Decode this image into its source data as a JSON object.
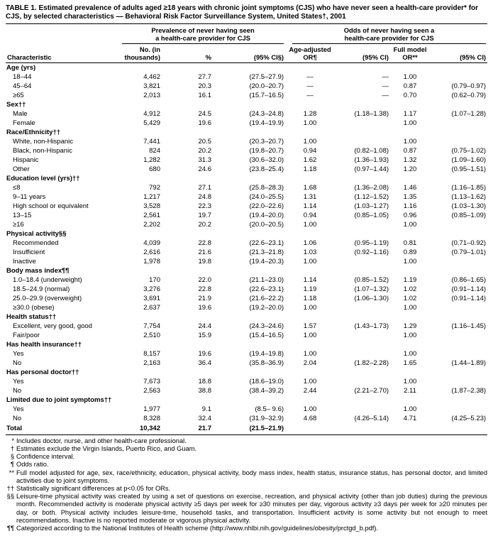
{
  "title": "TABLE 1. Estimated prevalence of adults aged ≥18 years with chronic joint symptoms (CJS) who have never seen a health-care provider* for CJS, by selected characteristics — Behavioral Risk Factor Surveillance System, United States†, 2001",
  "header": {
    "characteristic": "Characteristic",
    "prevalence_group": "Prevalence of never having seen\na health-care provider for CJS",
    "odds_group": "Odds of never having seen a\nhealth-care provider for CJS",
    "no_thousands": "No. (in\nthousands)",
    "percent": "%",
    "ci_prev": "(95% CI§)",
    "age_adjusted_or": "Age-adjusted\nOR¶",
    "ci_age": "(95% CI)",
    "full_model_or": "Full model\nOR**",
    "ci_full": "(95% CI)"
  },
  "table": {
    "rows": [
      {
        "type": "section",
        "label": "Age (yrs)"
      },
      {
        "type": "data",
        "label": "18–44",
        "no": "4,462",
        "pct": "27.7",
        "ci": "(27.5–27.9)",
        "or_age": "—",
        "ci_age": "—",
        "or_full": "1.00",
        "ci_full": ""
      },
      {
        "type": "data",
        "label": "45–64",
        "no": "3,821",
        "pct": "20.3",
        "ci": "(20.0–20.7)",
        "or_age": "—",
        "ci_age": "—",
        "or_full": "0.87",
        "ci_full": "(0.79–0.97)"
      },
      {
        "type": "data",
        "label": "≥65",
        "no": "2,013",
        "pct": "16.1",
        "ci": "(15.7–16.5)",
        "or_age": "—",
        "ci_age": "—",
        "or_full": "0.70",
        "ci_full": "(0.62–0.79)"
      },
      {
        "type": "section",
        "label": "Sex††"
      },
      {
        "type": "data",
        "label": "Male",
        "no": "4,912",
        "pct": "24.5",
        "ci": "(24.3–24.8)",
        "or_age": "1.28",
        "ci_age": "(1.18–1.38)",
        "or_full": "1.17",
        "ci_full": "(1.07–1.28)"
      },
      {
        "type": "data",
        "label": "Female",
        "no": "5,429",
        "pct": "19.6",
        "ci": "(19.4–19.9)",
        "or_age": "1.00",
        "ci_age": "",
        "or_full": "1.00",
        "ci_full": ""
      },
      {
        "type": "section",
        "label": "Race/Ethnicity††"
      },
      {
        "type": "data",
        "label": "White, non-Hispanic",
        "no": "7,441",
        "pct": "20.5",
        "ci": "(20.3–20.7)",
        "or_age": "1.00",
        "ci_age": "",
        "or_full": "1.00",
        "ci_full": ""
      },
      {
        "type": "data",
        "label": "Black, non-Hispanic",
        "no": "824",
        "pct": "20.2",
        "ci": "(19.8–20.7)",
        "or_age": "0.94",
        "ci_age": "(0.82–1.08)",
        "or_full": "0.87",
        "ci_full": "(0.75–1.02)"
      },
      {
        "type": "data",
        "label": "Hispanic",
        "no": "1,282",
        "pct": "31.3",
        "ci": "(30.6–32.0)",
        "or_age": "1.62",
        "ci_age": "(1.36–1.93)",
        "or_full": "1.32",
        "ci_full": "(1.09–1.60)"
      },
      {
        "type": "data",
        "label": "Other",
        "no": "680",
        "pct": "24.6",
        "ci": "(23.8–25.4)",
        "or_age": "1.18",
        "ci_age": "(0.97–1.44)",
        "or_full": "1.20",
        "ci_full": "(0.95–1.51)"
      },
      {
        "type": "section",
        "label": "Education level (yrs)††"
      },
      {
        "type": "data",
        "label": "≤8",
        "no": "792",
        "pct": "27.1",
        "ci": "(25.8–28.3)",
        "or_age": "1.68",
        "ci_age": "(1.36–2.08)",
        "or_full": "1.46",
        "ci_full": "(1.16–1.85)"
      },
      {
        "type": "data",
        "label": "9–11 years",
        "no": "1,217",
        "pct": "24.8",
        "ci": "(24.0–25.5)",
        "or_age": "1.31",
        "ci_age": "(1.12–1.52)",
        "or_full": "1.35",
        "ci_full": "(1.13–1.62)"
      },
      {
        "type": "data",
        "label": "High school or equivalent",
        "no": "3,528",
        "pct": "22.3",
        "ci": "(22.0–22.6)",
        "or_age": "1.14",
        "ci_age": "(1.03–1.27)",
        "or_full": "1.16",
        "ci_full": "(1.03–1.30)"
      },
      {
        "type": "data",
        "label": "13–15",
        "no": "2,561",
        "pct": "19.7",
        "ci": "(19.4–20.0)",
        "or_age": "0.94",
        "ci_age": "(0.85–1.05)",
        "or_full": "0.96",
        "ci_full": "(0.85–1.09)"
      },
      {
        "type": "data",
        "label": "≥16",
        "no": "2,202",
        "pct": "20.2",
        "ci": "(20.0–20.5)",
        "or_age": "1.00",
        "ci_age": "",
        "or_full": "1.00",
        "ci_full": ""
      },
      {
        "type": "section",
        "label": "Physical activity§§"
      },
      {
        "type": "data",
        "label": "Recommended",
        "no": "4,039",
        "pct": "22.8",
        "ci": "(22.6–23.1)",
        "or_age": "1.06",
        "ci_age": "(0.95–1.19)",
        "or_full": "0.81",
        "ci_full": "(0.71–0.92)"
      },
      {
        "type": "data",
        "label": "Insufficient",
        "no": "2,616",
        "pct": "21.6",
        "ci": "(21.3–21.8)",
        "or_age": "1.03",
        "ci_age": "(0.92–1.16)",
        "or_full": "0.89",
        "ci_full": "(0.79–1.01)"
      },
      {
        "type": "data",
        "label": "Inactive",
        "no": "1,978",
        "pct": "19.8",
        "ci": "(19.4–20.3)",
        "or_age": "1.00",
        "ci_age": "",
        "or_full": "1.00",
        "ci_full": ""
      },
      {
        "type": "section",
        "label": "Body mass index¶¶"
      },
      {
        "type": "data",
        "label": "1.0–18.4 (underweight)",
        "no": "170",
        "pct": "22.0",
        "ci": "(21.1–23.0)",
        "or_age": "1.14",
        "ci_age": "(0.85–1.52)",
        "or_full": "1.19",
        "ci_full": "(0.86–1.65)"
      },
      {
        "type": "data",
        "label": "18.5–24.9 (normal)",
        "no": "3,276",
        "pct": "22.8",
        "ci": "(22.6–23.1)",
        "or_age": "1.19",
        "ci_age": "(1.07–1.32)",
        "or_full": "1.02",
        "ci_full": "(0.91–1.14)"
      },
      {
        "type": "data",
        "label": "25.0–29.9 (overweight)",
        "no": "3,691",
        "pct": "21.9",
        "ci": "(21.6–22.2)",
        "or_age": "1.18",
        "ci_age": "(1.06–1.30)",
        "or_full": "1.02",
        "ci_full": "(0.91–1.14)"
      },
      {
        "type": "data",
        "indent": 2,
        "label": "≥30.0 (obese)",
        "no": "2,637",
        "pct": "19.6",
        "ci": "(19.2–20.0)",
        "or_age": "1.00",
        "ci_age": "",
        "or_full": "1.00",
        "ci_full": ""
      },
      {
        "type": "section",
        "label": "Health status††"
      },
      {
        "type": "data",
        "label": "Excellent, very good, good",
        "no": "7,754",
        "pct": "24.4",
        "ci": "(24.3–24.6)",
        "or_age": "1.57",
        "ci_age": "(1.43–1.73)",
        "or_full": "1.29",
        "ci_full": "(1.16–1.45)"
      },
      {
        "type": "data",
        "label": "Fair/poor",
        "no": "2,510",
        "pct": "15.9",
        "ci": "(15.4–16.5)",
        "or_age": "1.00",
        "ci_age": "",
        "or_full": "1.00",
        "ci_full": ""
      },
      {
        "type": "section",
        "label": "Has health insurance††"
      },
      {
        "type": "data",
        "label": "Yes",
        "no": "8,157",
        "pct": "19.6",
        "ci": "(19.4–19.8)",
        "or_age": "1.00",
        "ci_age": "",
        "or_full": "1.00",
        "ci_full": ""
      },
      {
        "type": "data",
        "label": "No",
        "no": "2,163",
        "pct": "36.4",
        "ci": "(35.8–36.9)",
        "or_age": "2.04",
        "ci_age": "(1.82–2.28)",
        "or_full": "1.65",
        "ci_full": "(1.44–1.89)"
      },
      {
        "type": "section",
        "label": "Has personal doctor††"
      },
      {
        "type": "data",
        "label": "Yes",
        "no": "7,673",
        "pct": "18.8",
        "ci": "(18.6–19.0)",
        "or_age": "1.00",
        "ci_age": "",
        "or_full": "1.00",
        "ci_full": ""
      },
      {
        "type": "data",
        "label": "No",
        "no": "2,563",
        "pct": "38.8",
        "ci": "(38.4–39.2)",
        "or_age": "2.44",
        "ci_age": "(2.21–2.70)",
        "or_full": "2.11",
        "ci_full": "(1.87–2.38)"
      },
      {
        "type": "section",
        "label": "Limited due to joint symptoms††"
      },
      {
        "type": "data",
        "label": "Yes",
        "no": "1,977",
        "pct": "9.1",
        "ci": "(8.5– 9.6)",
        "or_age": "1.00",
        "ci_age": "",
        "or_full": "1.00",
        "ci_full": ""
      },
      {
        "type": "data",
        "label": "No",
        "no": "8,328",
        "pct": "32.4",
        "ci": "(31.9–32.9)",
        "or_age": "4.68",
        "ci_age": "(4.26–5.14)",
        "or_full": "4.71",
        "ci_full": "(4.25–5.23)"
      },
      {
        "type": "total",
        "label": "Total",
        "no": "10,342",
        "pct": "21.7",
        "ci": "(21.5–21.9)",
        "or_age": "",
        "ci_age": "",
        "or_full": "",
        "ci_full": ""
      }
    ]
  },
  "footnotes": [
    {
      "marker": "*",
      "text": "Includes doctor, nurse, and other health-care professional."
    },
    {
      "marker": "†",
      "text": "Estimates exclude the Virgin Islands, Puerto Rico, and Guam."
    },
    {
      "marker": "§",
      "text": "Confidence interval."
    },
    {
      "marker": "¶",
      "text": "Odds ratio."
    },
    {
      "marker": "**",
      "text": "Full model adjusted for age, sex, race/ethnicity, education, physical activity, body mass index, health status, insurance status, has personal doctor, and limited activities due to joint symptoms."
    },
    {
      "marker": "††",
      "text": "Statistically significant differences at p<0.05 for ORs."
    },
    {
      "marker": "§§",
      "text": "Leisure-time physical activity was created by using a set of questions on exercise, recreation, and physical activity (other than job duties) during the previous month. Recommended activity is moderate physical activity ≥5 days per week for ≥30 minutes per day, vigorous activity ≥3 days per week for ≥20 minutes per day, or both. Physical activity includes leisure-time, household tasks, and transportation. Insufficient activity is some activity but not enough to meet recommendations. Inactive is no reported moderate or vigorous physical activity."
    },
    {
      "marker": "¶¶",
      "text": "Categorized according to the National Institutes of Health scheme (http://www.nhlbi.nih.gov/guidelines/obesity/prctgd_b.pdf)."
    }
  ]
}
